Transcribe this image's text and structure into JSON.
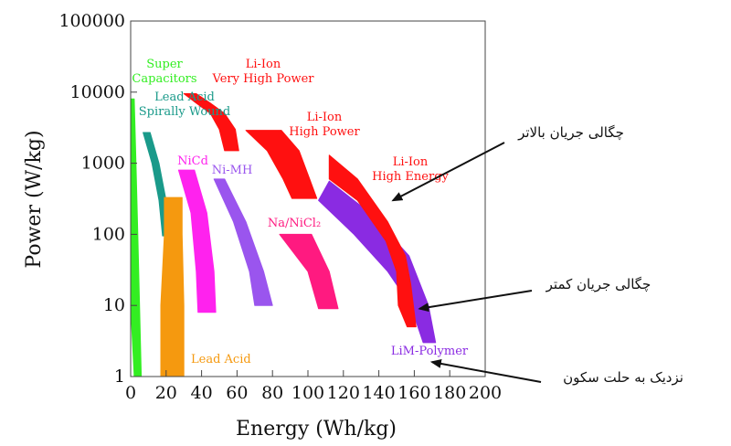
{
  "chart_data": {
    "type": "area",
    "xlabel": "Energy (Wh/kg)",
    "ylabel": "Power (W/kg)",
    "xlim": [
      0,
      200
    ],
    "ylim": [
      1,
      100000
    ],
    "yscale": "log",
    "x_ticks": [
      "0",
      "20",
      "40",
      "60",
      "80",
      "100",
      "120",
      "140",
      "160",
      "180",
      "200"
    ],
    "y_ticks": [
      "1",
      "10",
      "100",
      "1000",
      "10000",
      "100000"
    ],
    "grid": false,
    "regions": [
      {
        "name": "Super Capacitors",
        "label_lines": [
          "Super",
          "Capacitors"
        ],
        "color": "#33ee22",
        "upper": [
          [
            2,
            8000
          ],
          [
            3,
            1000
          ],
          [
            4,
            100
          ],
          [
            5,
            10
          ],
          [
            6,
            1
          ]
        ],
        "lower": [
          [
            0,
            8000
          ],
          [
            0,
            1000
          ],
          [
            0,
            100
          ],
          [
            0,
            10
          ],
          [
            2,
            1
          ]
        ]
      },
      {
        "name": "Lead Acid Spirally Wound",
        "label_lines": [
          "Lead Acid",
          "Spirally Wound"
        ],
        "color": "#1a9a8a",
        "upper": [
          [
            11,
            2700
          ],
          [
            16,
            1000
          ],
          [
            20,
            300
          ],
          [
            22,
            95
          ]
        ],
        "lower": [
          [
            7,
            2700
          ],
          [
            12,
            1000
          ],
          [
            16,
            300
          ],
          [
            18,
            95
          ]
        ]
      },
      {
        "name": "Lead Acid",
        "label_lines": [
          "Lead Acid"
        ],
        "color": "#f5990f",
        "upper": [
          [
            29,
            330
          ],
          [
            29,
            100
          ],
          [
            30,
            10
          ],
          [
            30,
            1
          ]
        ],
        "lower": [
          [
            19,
            330
          ],
          [
            19,
            100
          ],
          [
            17,
            10
          ],
          [
            17,
            1
          ]
        ]
      },
      {
        "name": "NiCd",
        "label_lines": [
          "NiCd"
        ],
        "color": "#ff22ee",
        "upper": [
          [
            36,
            800
          ],
          [
            43,
            200
          ],
          [
            47,
            30
          ],
          [
            48,
            8
          ]
        ],
        "lower": [
          [
            27,
            800
          ],
          [
            34,
            200
          ],
          [
            37,
            30
          ],
          [
            38,
            8
          ]
        ]
      },
      {
        "name": "Ni-MH",
        "label_lines": [
          "Ni-MH"
        ],
        "color": "#9a55ee",
        "upper": [
          [
            53,
            600
          ],
          [
            65,
            150
          ],
          [
            75,
            30
          ],
          [
            80,
            10
          ]
        ],
        "lower": [
          [
            47,
            600
          ],
          [
            58,
            150
          ],
          [
            67,
            30
          ],
          [
            70,
            10
          ]
        ]
      },
      {
        "name": "Na/NiCl2",
        "label_lines": [
          "Na/NiCl₂"
        ],
        "color": "#ff1a80",
        "upper": [
          [
            102,
            100
          ],
          [
            112,
            30
          ],
          [
            117,
            9
          ]
        ],
        "lower": [
          [
            84,
            100
          ],
          [
            100,
            30
          ],
          [
            106,
            9
          ]
        ]
      },
      {
        "name": "Li-Ion Very High Power",
        "label_lines": [
          "Li-Ion",
          "Very High Power"
        ],
        "color": "#ff1010",
        "upper": [
          [
            37,
            9500
          ],
          [
            45,
            7000
          ],
          [
            53,
            5000
          ],
          [
            59,
            3000
          ],
          [
            61,
            1500
          ]
        ],
        "lower": [
          [
            30,
            9500
          ],
          [
            37,
            7000
          ],
          [
            45,
            5000
          ],
          [
            50,
            3000
          ],
          [
            53,
            1500
          ]
        ]
      },
      {
        "name": "Li-Ion High Power",
        "label_lines": [
          "Li-Ion",
          "High Power"
        ],
        "color": "#ff1010",
        "upper": [
          [
            85,
            2900
          ],
          [
            95,
            1500
          ],
          [
            101,
            600
          ],
          [
            105,
            320
          ]
        ],
        "lower": [
          [
            65,
            2900
          ],
          [
            77,
            1500
          ],
          [
            86,
            600
          ],
          [
            91,
            320
          ]
        ]
      },
      {
        "name": "LiM-Polymer",
        "label_lines": [
          "LiM-Polymer"
        ],
        "color": "#8a2be2",
        "upper": [
          [
            112,
            560
          ],
          [
            135,
            200
          ],
          [
            157,
            50
          ],
          [
            168,
            10
          ],
          [
            172,
            3
          ]
        ],
        "lower": [
          [
            106,
            300
          ],
          [
            126,
            100
          ],
          [
            145,
            30
          ],
          [
            158,
            10
          ],
          [
            165,
            3
          ]
        ]
      },
      {
        "name": "Li-Ion High Energy",
        "label_lines": [
          "Li-Ion",
          "High Energy"
        ],
        "color": "#ff1010",
        "upper": [
          [
            112,
            1300
          ],
          [
            128,
            600
          ],
          [
            145,
            150
          ],
          [
            155,
            50
          ],
          [
            158,
            20
          ],
          [
            161,
            5
          ]
        ],
        "lower": [
          [
            112,
            600
          ],
          [
            128,
            300
          ],
          [
            144,
            80
          ],
          [
            150,
            30
          ],
          [
            151,
            10
          ],
          [
            156,
            5
          ]
        ]
      }
    ],
    "annotations": [
      {
        "text": "چگالی جریان بالاتر",
        "arrow_to": [
          148,
          300
        ]
      },
      {
        "text": "چگالی جریان کمتر",
        "arrow_to": [
          163,
          9
        ]
      },
      {
        "text": "نزدیک به حلت سکون",
        "arrow_to": [
          170,
          1.6
        ]
      }
    ]
  }
}
